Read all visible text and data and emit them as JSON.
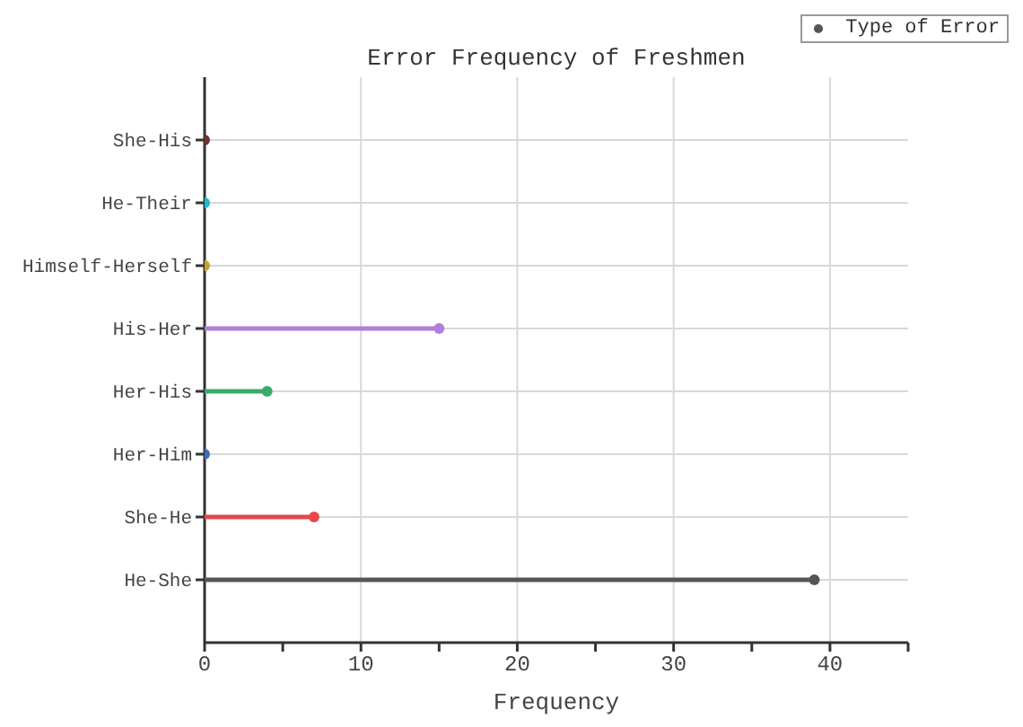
{
  "chart_data": {
    "type": "lollipop",
    "orientation": "horizontal",
    "title": "Error Frequency of Freshmen",
    "xlabel": "Frequency",
    "categories": [
      "She-His",
      "He-Their",
      "Himself-Herself",
      "His-Her",
      "Her-His",
      "Her-Him",
      "She-He",
      "He-She"
    ],
    "series": [
      {
        "name": "Type of Error",
        "color": "#555555",
        "values": [
          0,
          0,
          0,
          15,
          4,
          0,
          7,
          39
        ],
        "colors": [
          "#7a2e2e",
          "#17becf",
          "#c9a227",
          "#b07fd9",
          "#3aaa6a",
          "#3a6fbf",
          "#e84848",
          "#555555"
        ]
      }
    ],
    "xlim": [
      0,
      45
    ],
    "xticks": [
      0,
      {
        "value": 5,
        "label": null
      },
      10,
      {
        "value": 15,
        "label": null
      },
      20,
      {
        "value": 25,
        "label": null
      },
      30,
      {
        "value": 35,
        "label": null
      },
      40,
      {
        "value": 45,
        "label": null
      }
    ],
    "grid": true,
    "legend": "top right",
    "marker": "circle"
  }
}
